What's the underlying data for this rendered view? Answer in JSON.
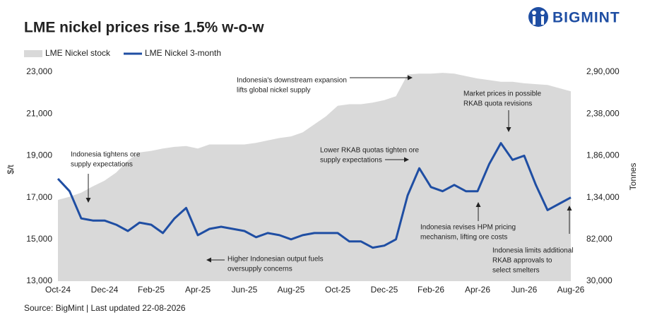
{
  "brand": "BIGMINT",
  "chart_data": {
    "type": "line-area",
    "title": "LME nickel prices rise 1.5% w-o-w",
    "source": "Source: BigMint | Last updated 22-08-2026",
    "y_label": "$/t",
    "y2_label": "Tonnes",
    "categories": [
      "Oct-24",
      null,
      null,
      null,
      "Dec-24",
      null,
      null,
      null,
      "Feb-25",
      null,
      null,
      null,
      "Apr-25",
      null,
      null,
      null,
      "Jun-25",
      null,
      null,
      null,
      "Aug-25",
      null,
      null,
      null,
      "Oct-25",
      null,
      null,
      null,
      "Dec-25",
      null,
      null,
      null,
      "Feb-26",
      null,
      null,
      null,
      "Apr-26",
      null,
      null,
      null,
      "Jun-26",
      null,
      null,
      null,
      "Aug-26"
    ],
    "series": [
      {
        "name": "LME Nickel stock",
        "type": "area",
        "axis": "y2",
        "color": "#d9d9d9",
        "values": [
          131000,
          135000,
          140000,
          148000,
          155000,
          165000,
          180000,
          190000,
          192000,
          195000,
          197000,
          198000,
          195000,
          200000,
          200000,
          200000,
          200000,
          202000,
          205000,
          208000,
          210000,
          215000,
          225000,
          235000,
          248000,
          250000,
          250000,
          252000,
          255000,
          260000,
          287000,
          288000,
          288000,
          289000,
          288000,
          285000,
          282000,
          280000,
          278000,
          278000,
          276000,
          275000,
          274000,
          270000,
          266000
        ]
      },
      {
        "name": "LME Nickel 3-month",
        "type": "line",
        "axis": "y",
        "color": "#1f4ea3",
        "values": [
          17900,
          17300,
          16000,
          15900,
          15900,
          15700,
          15400,
          15800,
          15700,
          15300,
          16000,
          16500,
          15200,
          15500,
          15600,
          15500,
          15400,
          15100,
          15300,
          15200,
          15000,
          15200,
          15300,
          15300,
          15300,
          14900,
          14900,
          14600,
          14700,
          15000,
          17100,
          18400,
          17500,
          17300,
          17600,
          17300,
          17300,
          18600,
          19600,
          18800,
          19000,
          17600,
          16400,
          16700,
          17000
        ]
      }
    ],
    "ylim": [
      13000,
      23000
    ],
    "yticks": [
      {
        "value": 13000,
        "label": "13,000"
      },
      {
        "value": 15000,
        "label": "15,000"
      },
      {
        "value": 17000,
        "label": "17,000"
      },
      {
        "value": 19000,
        "label": "19,000"
      },
      {
        "value": 21000,
        "label": "21,000"
      },
      {
        "value": 23000,
        "label": "23,000"
      }
    ],
    "y2lim": [
      30000,
      290000
    ],
    "y2ticks": [
      {
        "value": 30000,
        "label": "30,000"
      },
      {
        "value": 82000,
        "label": "82,000"
      },
      {
        "value": 134000,
        "label": "1,34,000"
      },
      {
        "value": 186000,
        "label": "1,86,000"
      },
      {
        "value": 238000,
        "label": "2,38,000"
      },
      {
        "value": 290000,
        "label": "2,90,000"
      }
    ],
    "annotations": [
      {
        "lines": [
          "Indonesia's downstream expansion",
          "lifts global nickel supply"
        ]
      },
      {
        "lines": [
          "Indonesia tightens ore",
          "supply expectations"
        ]
      },
      {
        "lines": [
          "Higher Indonesian output fuels",
          "oversupply concerns"
        ]
      },
      {
        "lines": [
          "Lower RKAB quotas tighten ore",
          "supply expectations"
        ]
      },
      {
        "lines": [
          "Market prices in possible",
          "RKAB quota revisions"
        ]
      },
      {
        "lines": [
          "Indonesia revises HPM pricing",
          "mechanism, lifting ore costs"
        ]
      },
      {
        "lines": [
          "Indonesia limits additional",
          "RKAB approvals to",
          "select smelters"
        ]
      }
    ]
  }
}
